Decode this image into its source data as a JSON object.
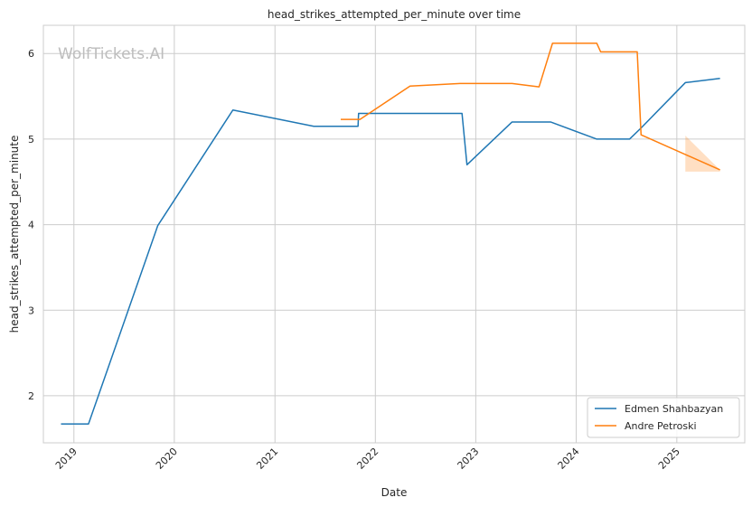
{
  "chart_data": {
    "type": "line",
    "title": "head_strikes_attempted_per_minute over time",
    "xlabel": "Date",
    "ylabel": "head_strikes_attempted_per_minute",
    "watermark": "WolfTickets.AI",
    "x_ticks": [
      "2019",
      "2020",
      "2021",
      "2022",
      "2023",
      "2024",
      "2025"
    ],
    "y_ticks": [
      "2",
      "3",
      "4",
      "5",
      "6"
    ],
    "xlim": [
      "2018-09-12",
      "2025-09-05"
    ],
    "ylim": [
      1.45,
      6.33
    ],
    "grid": true,
    "legend_position": "lower-right",
    "series": [
      {
        "name": "Edmen Shahbazyan",
        "color": "#1f77b4",
        "x": [
          "2018-11-15",
          "2019-02-23",
          "2019-11-02",
          "2020-08-01",
          "2021-05-22",
          "2021-10-30",
          "2021-11-01",
          "2022-11-12",
          "2022-11-30",
          "2023-05-13",
          "2023-09-30",
          "2024-03-16",
          "2024-07-13",
          "2024-08-24",
          "2025-02-01",
          "2025-06-07"
        ],
        "values": [
          1.67,
          1.67,
          3.99,
          5.34,
          5.15,
          5.15,
          5.3,
          5.3,
          4.7,
          5.2,
          5.2,
          5.0,
          5.0,
          5.13,
          5.66,
          5.71
        ]
      },
      {
        "name": "Andre Petroski",
        "color": "#ff7f0e",
        "x": [
          "2021-08-28",
          "2021-11-06",
          "2022-05-07",
          "2022-11-05",
          "2023-05-13",
          "2023-08-19",
          "2023-10-07",
          "2024-03-16",
          "2024-03-30",
          "2024-08-10",
          "2024-08-24",
          "2025-06-07"
        ],
        "values": [
          5.23,
          5.23,
          5.62,
          5.65,
          5.65,
          5.61,
          6.12,
          6.12,
          6.02,
          6.02,
          5.05,
          4.64
        ]
      }
    ],
    "uncertainty_band": {
      "series": "Andre Petroski",
      "color": "#ff7f0e",
      "x": [
        "2025-02-01",
        "2025-06-07"
      ],
      "upper": [
        5.04,
        4.64
      ],
      "lower": [
        4.62,
        4.62
      ]
    }
  }
}
